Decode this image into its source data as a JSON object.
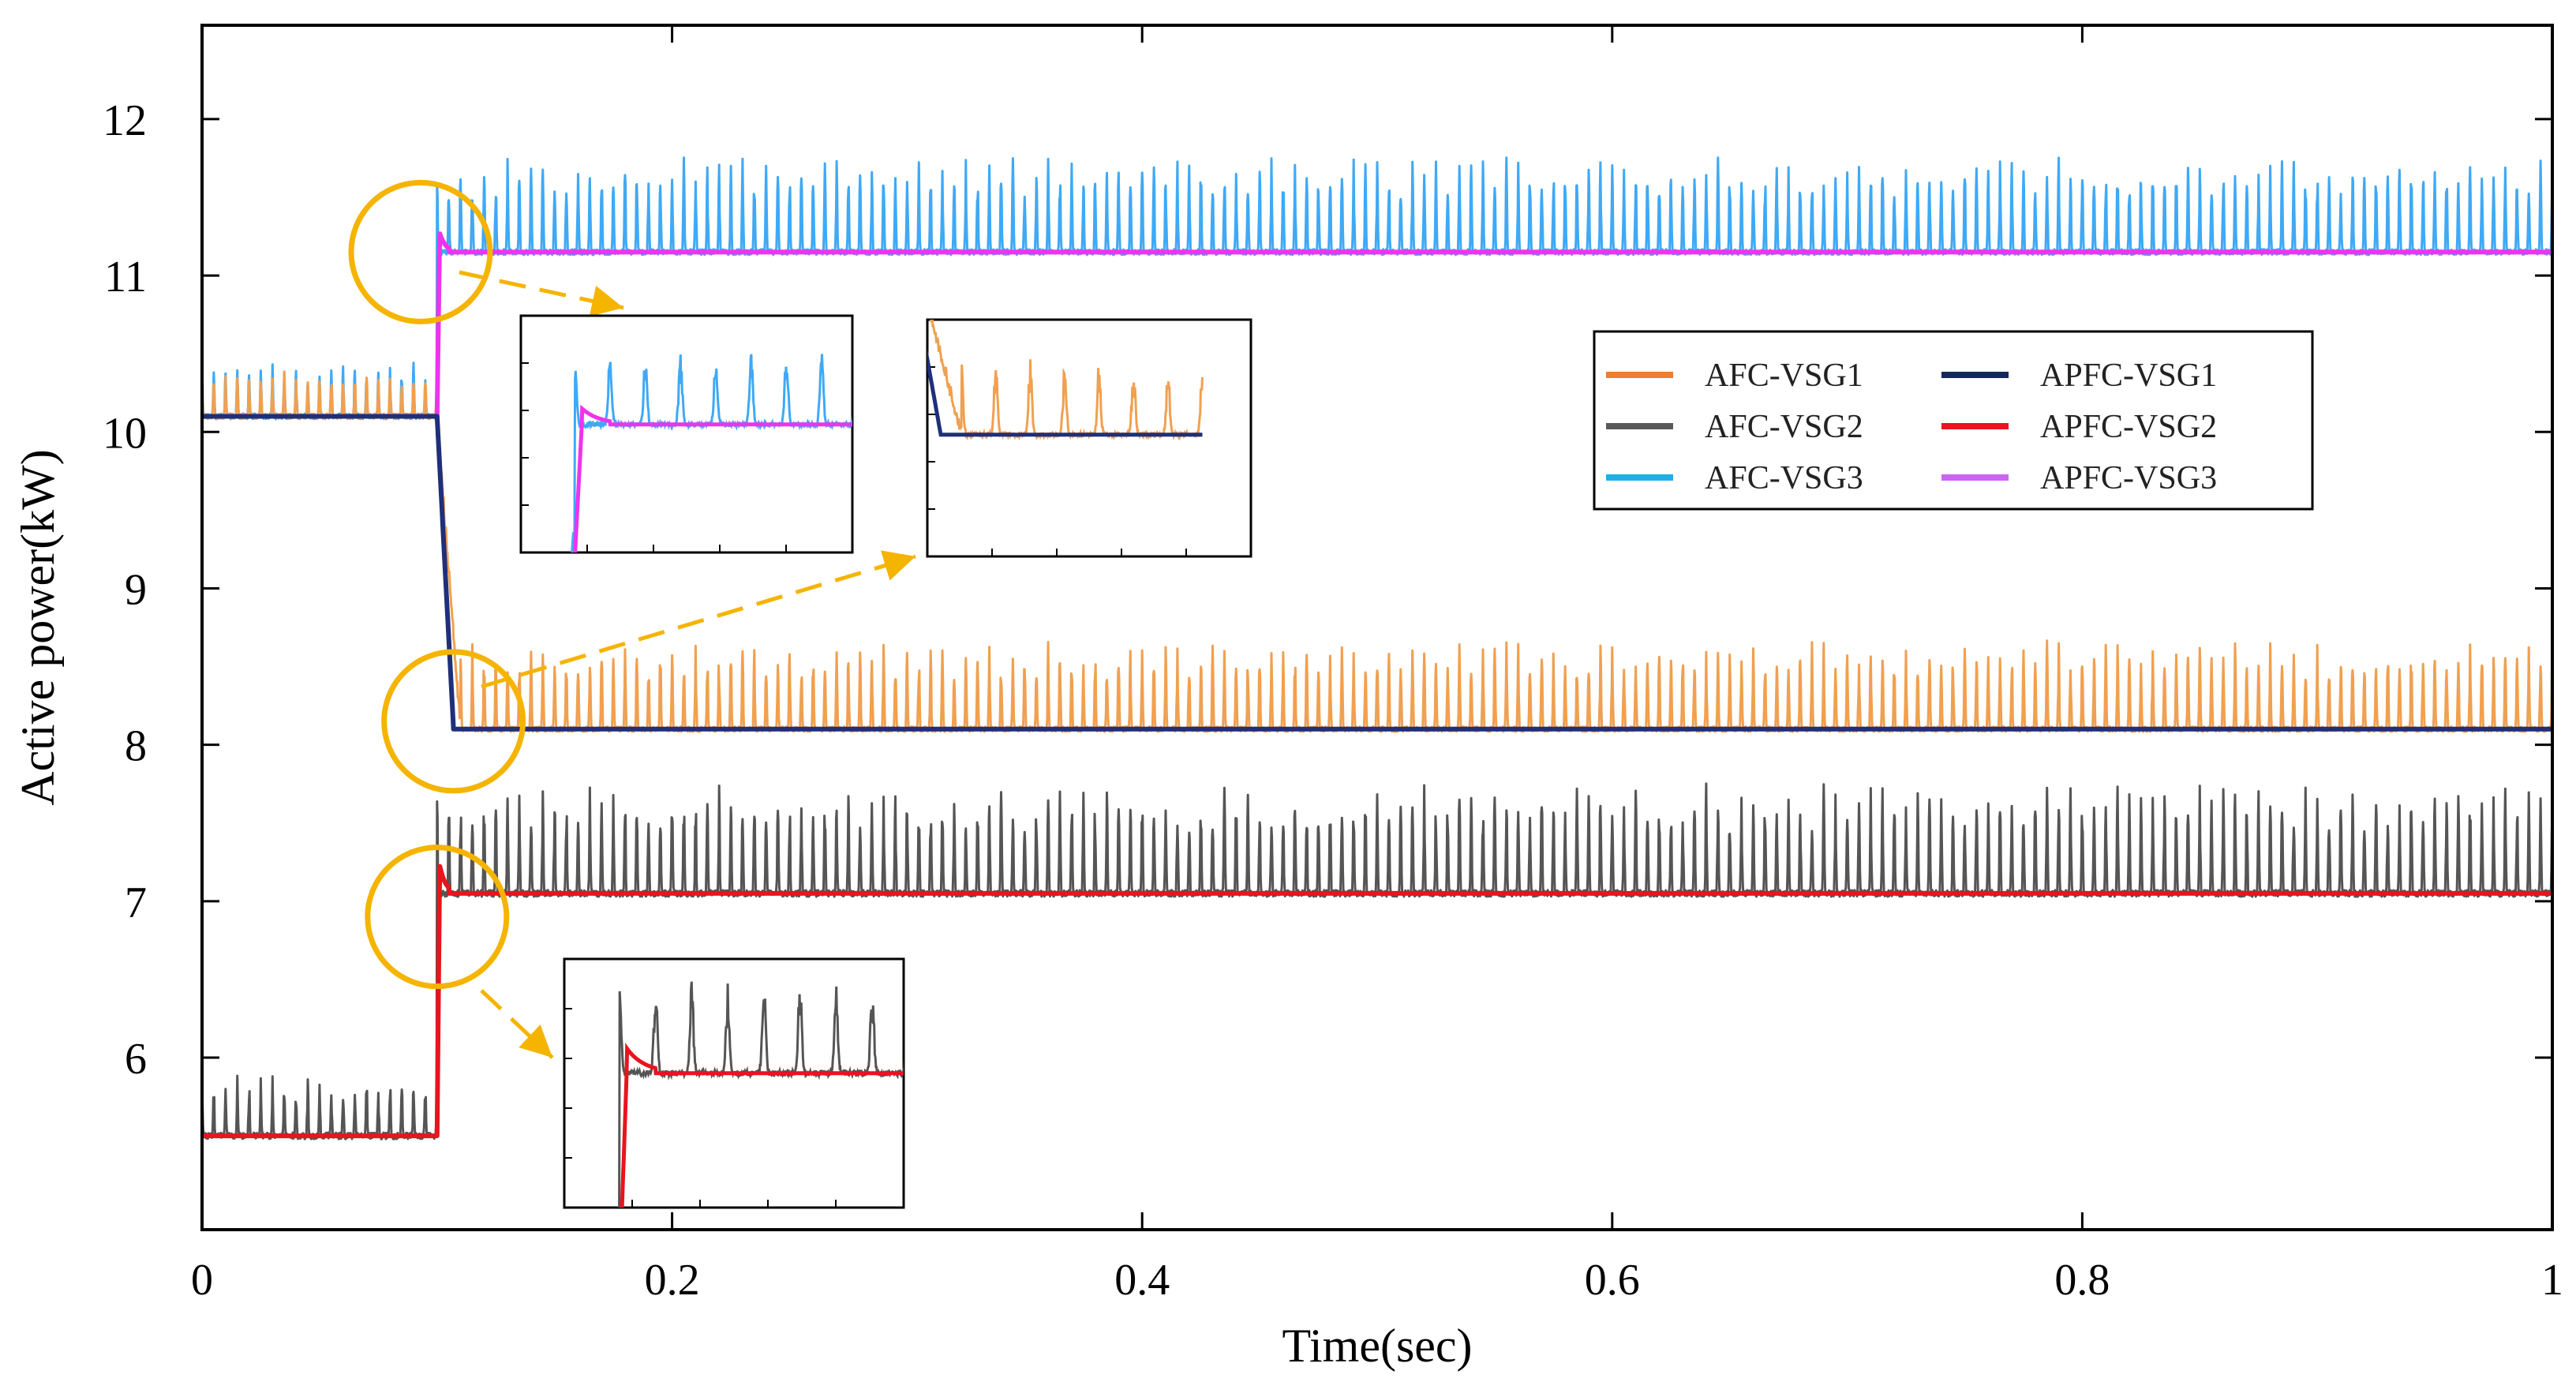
{
  "chart_data": {
    "type": "line",
    "title": "",
    "xlabel": "Time(sec)",
    "ylabel": "Active power(kW)",
    "xlim": [
      0,
      1
    ],
    "ylim": [
      4.9,
      12.6
    ],
    "xticks": [
      0,
      0.2,
      0.4,
      0.6,
      0.8,
      1
    ],
    "xtick_labels": [
      "0",
      "0.2",
      "0.4",
      "0.6",
      "0.8",
      "1"
    ],
    "yticks": [
      6,
      7,
      8,
      9,
      10,
      11,
      12
    ],
    "ytick_labels": [
      "6",
      "7",
      "8",
      "9",
      "10",
      "11",
      "12"
    ],
    "step_time": 0.1,
    "legend_position": "right",
    "series": [
      {
        "name": "AFC-VSG1",
        "color": "#f0a050",
        "legend_color": "#ed7d31",
        "before": 10.1,
        "after": 8.1,
        "ripple": 0.55,
        "settle": 0.11
      },
      {
        "name": "AFC-VSG2",
        "color": "#555555",
        "legend_color": "#595959",
        "before": 5.5,
        "after": 7.05,
        "ripple": 0.7,
        "settle": 0.1
      },
      {
        "name": "AFC-VSG3",
        "color": "#3fa9f5",
        "legend_color": "#1fb0e6",
        "before": 10.1,
        "after": 11.15,
        "ripple": 0.6,
        "settle": 0.1
      },
      {
        "name": "APFC-VSG1",
        "color": "#1f2f7a",
        "legend_color": "#14285a",
        "before": 10.1,
        "after": 8.1,
        "ripple": 0,
        "settle": 0.107
      },
      {
        "name": "APFC-VSG2",
        "color": "#e8141e",
        "legend_color": "#e8141e",
        "before": 5.5,
        "after": 7.05,
        "ripple": 0,
        "settle": 0.101
      },
      {
        "name": "APFC-VSG3",
        "color": "#ee33ee",
        "legend_color": "#cc66ee",
        "before": 10.1,
        "after": 11.15,
        "ripple": 0,
        "settle": 0.101
      }
    ],
    "zoom_circles": [
      {
        "x": 0.093,
        "y": 11.15
      },
      {
        "x": 0.107,
        "y": 8.15
      },
      {
        "x": 0.1,
        "y": 6.9
      }
    ],
    "insets": [
      {
        "name": "inset-upper",
        "slow": "AFC-VSG3",
        "fast": "APFC-VSG3"
      },
      {
        "name": "inset-middle",
        "slow": "AFC-VSG1",
        "fast": "APFC-VSG1"
      },
      {
        "name": "inset-lower",
        "slow": "AFC-VSG2",
        "fast": "APFC-VSG2"
      }
    ],
    "annotation_color": "#f5b400"
  }
}
